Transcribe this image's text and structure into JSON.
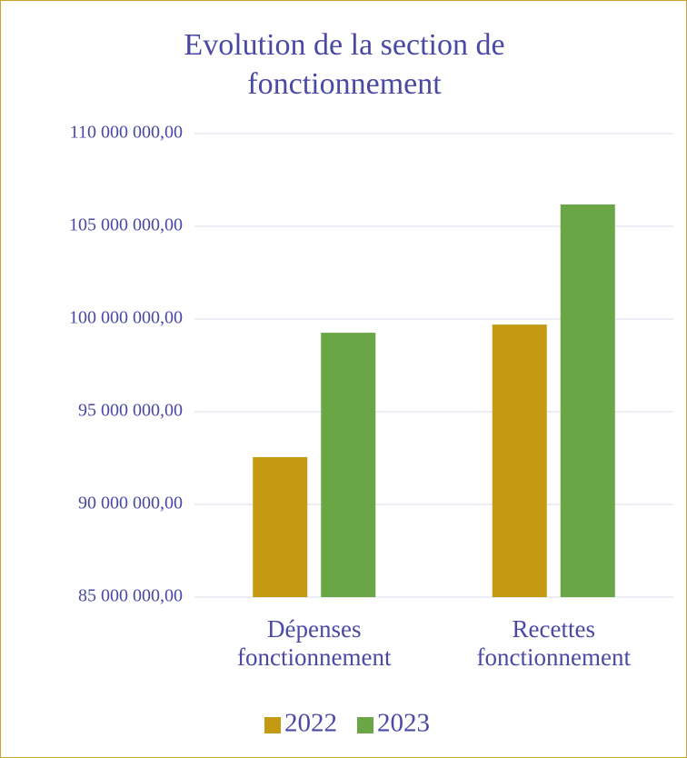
{
  "chart_data": {
    "type": "bar",
    "title": "Evolution de la section de fonctionnement",
    "categories": [
      "Dépenses fonctionnement",
      "Recettes fonctionnement"
    ],
    "series": [
      {
        "name": "2022",
        "color": "#c49a12",
        "values": [
          92550000,
          99700000
        ]
      },
      {
        "name": "2023",
        "color": "#6aa645",
        "values": [
          99260000,
          106180000
        ]
      }
    ],
    "ylim": [
      85000000,
      110000000
    ],
    "yticks": [
      {
        "value": 85000000,
        "label": "85 000 000,00"
      },
      {
        "value": 90000000,
        "label": "90 000 000,00"
      },
      {
        "value": 95000000,
        "label": "95 000 000,00"
      },
      {
        "value": 100000000,
        "label": "100 000 000,00"
      },
      {
        "value": 105000000,
        "label": "105 000 000,00"
      },
      {
        "value": 110000000,
        "label": "110 000 000,00"
      }
    ],
    "grid": true,
    "legend": "bottom"
  }
}
